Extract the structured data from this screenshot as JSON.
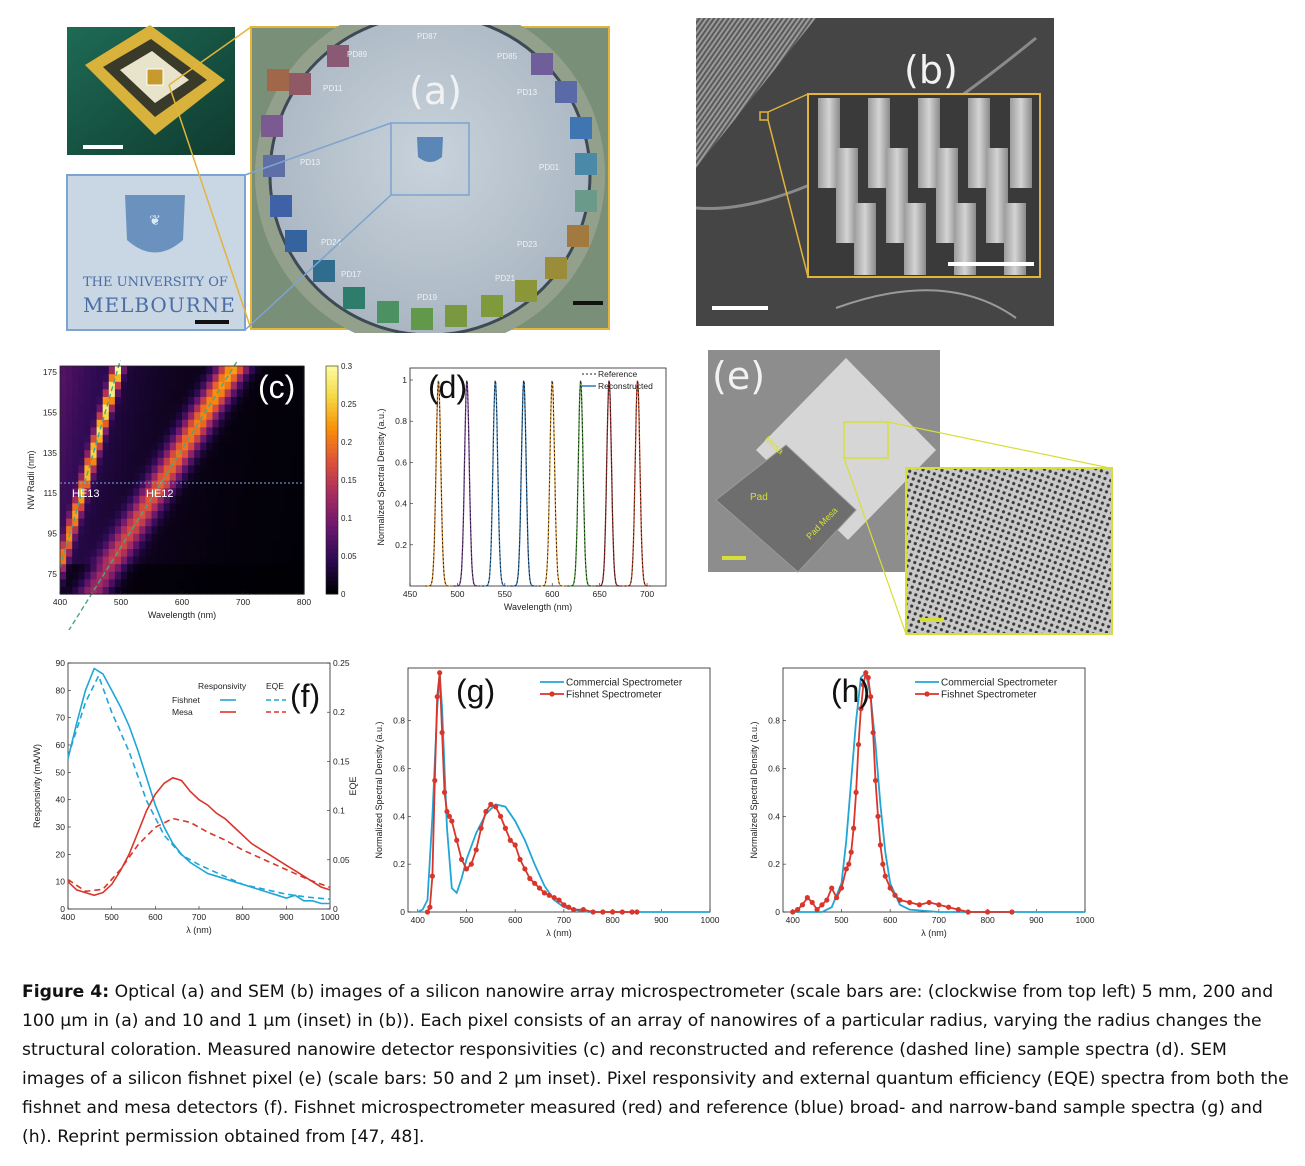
{
  "figure": {
    "caption_label": "Figure 4:",
    "caption_text": "Optical (a) and SEM (b) images of a silicon nanowire array microspectrometer (scale bars are: (clockwise from top left) 5 mm, 200 and 100 μm in (a) and 10 and 1 μm (inset) in (b)). Each pixel consists of an array of nanowires of a particular radius, varying the radius changes the structural coloration. Measured nanowire detector responsivities (c) and reconstructed and reference (dashed line) sample spectra (d). SEM images of a silicon fishnet pixel (e) (scale bars: 50 and 2 μm inset). Pixel responsivity and external quantum efficiency (EQE) spectra from both the fishnet and mesa detectors (f). Fishnet microspectrometer measured (red) and reference (blue) broad- and narrow-band sample spectra (g) and (h). Reprint permission obtained from [47, 48]."
  },
  "panel_a": {
    "label": "(a)",
    "logo_line1": "THE UNIVERSITY OF",
    "logo_line2": "MELBOURNE",
    "pads": [
      "PD87",
      "PD89",
      "PD85",
      "PD11",
      "PD13",
      "PD01",
      "PD13",
      "PD24",
      "PD23",
      "PD17",
      "PD21",
      "PD19"
    ]
  },
  "panel_b": {
    "label": "(b)"
  },
  "panel_e": {
    "label": "(e)",
    "text_mesa": "Mesa",
    "text_pad": "Pad",
    "text_pad_mesa": "Pad Mesa"
  },
  "colors": {
    "gold": "#e2b43a",
    "frame_blue": "#7da3cf",
    "yellow_green": "#d6df3a",
    "blue_series": "#1fa6d6",
    "red_series": "#d8362b"
  },
  "chart_data": [
    {
      "id": "c",
      "type": "heatmap",
      "label": "(c)",
      "xlabel": "Wavelength (nm)",
      "ylabel": "NW Radii (nm)",
      "xlim": [
        400,
        800
      ],
      "ylim": [
        65,
        178
      ],
      "xticks": [
        400,
        500,
        600,
        700,
        800
      ],
      "yticks": [
        75,
        95,
        115,
        135,
        155,
        175
      ],
      "colorbar_ticks": [
        "0",
        "0.05",
        "0.1",
        "0.15",
        "0.2",
        "0.25",
        "0.3"
      ],
      "colorbar_range": [
        0,
        0.3
      ],
      "annotations": [
        "HE13",
        "HE12"
      ],
      "mode_lines": [
        {
          "name": "HE13",
          "x": [
            400,
            500
          ],
          "y": [
            78,
            182
          ]
        },
        {
          "name": "HE12",
          "x": [
            400,
            700
          ],
          "y": [
            40,
            185
          ]
        }
      ],
      "reference_line_y": 120
    },
    {
      "id": "d",
      "type": "line",
      "label": "(d)",
      "xlabel": "Wavelength (nm)",
      "ylabel": "Normalized Spectral Density (a.u.)",
      "xlim": [
        450,
        720
      ],
      "ylim": [
        0,
        1.0
      ],
      "xticks": [
        450,
        500,
        550,
        600,
        650,
        700
      ],
      "yticks": [
        0.2,
        0.4,
        0.6,
        0.8,
        1
      ],
      "legend": [
        "Reference",
        "Reconstructed"
      ],
      "peaks": [
        480,
        510,
        540,
        570,
        600,
        630,
        660,
        690
      ],
      "peak_colors": [
        "#e08a2a",
        "#7a3c96",
        "#3a86c4",
        "#2a6fb0",
        "#e8a23a",
        "#4a9c3a",
        "#a02a2a",
        "#d0492a"
      ],
      "peak_width_nm": 3.5,
      "peak_value": 1
    },
    {
      "id": "f",
      "type": "line",
      "label": "(f)",
      "xlabel": "λ (nm)",
      "ylabel": "Responsivity (mA/W)",
      "y2label": "EQE",
      "xlim": [
        400,
        1000
      ],
      "ylim": [
        0,
        90
      ],
      "y2lim": [
        0,
        0.25
      ],
      "xticks": [
        400,
        500,
        600,
        700,
        800,
        900,
        1000
      ],
      "yticks": [
        0,
        10,
        20,
        30,
        40,
        50,
        60,
        70,
        80,
        90
      ],
      "y2ticks": [
        "0",
        "0.05",
        "0.1",
        "0.15",
        "0.2",
        "0.25"
      ],
      "legend_header": [
        "Responsivity",
        "EQE"
      ],
      "series": [
        {
          "name": "Fishnet",
          "style": "solid",
          "color": "#1fa6d6",
          "x": [
            400,
            420,
            440,
            460,
            480,
            500,
            520,
            540,
            560,
            580,
            600,
            620,
            640,
            660,
            680,
            700,
            720,
            740,
            760,
            780,
            800,
            820,
            840,
            860,
            880,
            900,
            920,
            940,
            960,
            980,
            1000
          ],
          "y": [
            55,
            68,
            80,
            88,
            86,
            80,
            74,
            67,
            58,
            48,
            38,
            30,
            24,
            20,
            17,
            15,
            13,
            12,
            11,
            10,
            9,
            8,
            7,
            6,
            5,
            4,
            5,
            3,
            3,
            2,
            2
          ]
        },
        {
          "name": "Mesa",
          "style": "solid",
          "color": "#d8362b",
          "x": [
            400,
            420,
            440,
            460,
            480,
            500,
            520,
            540,
            560,
            580,
            600,
            620,
            640,
            660,
            680,
            700,
            720,
            740,
            760,
            780,
            800,
            820,
            840,
            860,
            880,
            900,
            920,
            940,
            960,
            980,
            1000
          ],
          "y": [
            10,
            7,
            6,
            5,
            6,
            9,
            14,
            20,
            28,
            36,
            42,
            46,
            48,
            47,
            43,
            40,
            38,
            35,
            33,
            30,
            27,
            24,
            22,
            20,
            18,
            16,
            14,
            12,
            10,
            8,
            7
          ]
        },
        {
          "name": "Fishnet EQE",
          "style": "dashed",
          "color": "#1fa6d6",
          "x": [
            400,
            440,
            470,
            500,
            540,
            580,
            620,
            660,
            700,
            750,
            800,
            850,
            900,
            950,
            1000
          ],
          "y": [
            0.155,
            0.21,
            0.237,
            0.2,
            0.16,
            0.11,
            0.075,
            0.055,
            0.045,
            0.035,
            0.025,
            0.02,
            0.015,
            0.012,
            0.01
          ]
        },
        {
          "name": "Mesa EQE",
          "style": "dashed",
          "color": "#d8362b",
          "x": [
            400,
            440,
            480,
            520,
            560,
            600,
            640,
            680,
            720,
            760,
            800,
            850,
            900,
            950,
            1000
          ],
          "y": [
            0.03,
            0.018,
            0.02,
            0.04,
            0.065,
            0.083,
            0.092,
            0.088,
            0.078,
            0.07,
            0.06,
            0.05,
            0.04,
            0.03,
            0.022
          ]
        }
      ]
    },
    {
      "id": "g",
      "type": "line",
      "label": "(g)",
      "xlabel": "λ (nm)",
      "ylabel": "Normalized Spectral Density (a.u.)",
      "xlim": [
        380,
        1000
      ],
      "ylim": [
        0,
        1.02
      ],
      "xticks": [
        400,
        500,
        600,
        700,
        800,
        900,
        1000
      ],
      "yticks": [
        0,
        0.2,
        0.4,
        0.6,
        0.8
      ],
      "series": [
        {
          "name": "Commercial Spectrometer",
          "color": "#1fa6d6",
          "markers": false,
          "x": [
            400,
            410,
            420,
            430,
            440,
            445,
            450,
            460,
            470,
            480,
            490,
            500,
            520,
            540,
            560,
            580,
            600,
            620,
            640,
            660,
            680,
            700,
            720,
            750,
            800,
            900,
            1000
          ],
          "y": [
            0,
            0.01,
            0.05,
            0.4,
            0.85,
            1.0,
            0.85,
            0.35,
            0.1,
            0.08,
            0.14,
            0.22,
            0.33,
            0.41,
            0.45,
            0.44,
            0.38,
            0.3,
            0.2,
            0.11,
            0.05,
            0.02,
            0.01,
            0,
            0,
            0,
            0
          ]
        },
        {
          "name": "Fishnet Spectrometer",
          "color": "#d8362b",
          "markers": true,
          "x": [
            420,
            425,
            430,
            435,
            440,
            445,
            450,
            455,
            460,
            465,
            470,
            480,
            490,
            500,
            510,
            520,
            530,
            540,
            550,
            560,
            570,
            580,
            590,
            600,
            610,
            620,
            630,
            640,
            650,
            660,
            670,
            680,
            690,
            700,
            710,
            720,
            740,
            760,
            780,
            800,
            820,
            840,
            850
          ],
          "y": [
            0,
            0.02,
            0.15,
            0.55,
            0.9,
            1.0,
            0.75,
            0.5,
            0.42,
            0.4,
            0.38,
            0.3,
            0.22,
            0.18,
            0.2,
            0.26,
            0.35,
            0.42,
            0.45,
            0.44,
            0.4,
            0.35,
            0.3,
            0.28,
            0.22,
            0.18,
            0.14,
            0.12,
            0.1,
            0.08,
            0.07,
            0.06,
            0.05,
            0.03,
            0.02,
            0.01,
            0.01,
            0,
            0,
            0,
            0,
            0,
            0
          ]
        }
      ]
    },
    {
      "id": "h",
      "type": "line",
      "label": "(h)",
      "xlabel": "λ (nm)",
      "ylabel": "Normalized Spectral Density (a.u.)",
      "xlim": [
        380,
        1000
      ],
      "ylim": [
        0,
        1.02
      ],
      "xticks": [
        400,
        500,
        600,
        700,
        800,
        900,
        1000
      ],
      "yticks": [
        0,
        0.2,
        0.4,
        0.6,
        0.8
      ],
      "series": [
        {
          "name": "Commercial Spectrometer",
          "color": "#1fa6d6",
          "markers": false,
          "x": [
            400,
            460,
            480,
            500,
            510,
            520,
            530,
            540,
            550,
            560,
            570,
            580,
            590,
            600,
            620,
            640,
            700,
            1000
          ],
          "y": [
            0,
            0,
            0.02,
            0.12,
            0.3,
            0.55,
            0.8,
            0.98,
            1.0,
            0.9,
            0.7,
            0.45,
            0.25,
            0.12,
            0.03,
            0.01,
            0,
            0
          ]
        },
        {
          "name": "Fishnet Spectrometer",
          "color": "#d8362b",
          "markers": true,
          "x": [
            400,
            410,
            420,
            430,
            440,
            450,
            460,
            470,
            480,
            490,
            500,
            510,
            515,
            520,
            525,
            530,
            535,
            540,
            545,
            550,
            555,
            560,
            565,
            570,
            575,
            580,
            585,
            590,
            600,
            610,
            620,
            640,
            660,
            680,
            700,
            720,
            740,
            760,
            800,
            850
          ],
          "y": [
            0,
            0.01,
            0.03,
            0.06,
            0.04,
            0.01,
            0.03,
            0.05,
            0.1,
            0.06,
            0.1,
            0.18,
            0.2,
            0.25,
            0.35,
            0.5,
            0.7,
            0.85,
            0.95,
            1.0,
            0.98,
            0.9,
            0.75,
            0.55,
            0.4,
            0.28,
            0.2,
            0.15,
            0.1,
            0.07,
            0.05,
            0.04,
            0.03,
            0.04,
            0.03,
            0.02,
            0.01,
            0,
            0,
            0
          ]
        }
      ]
    }
  ]
}
